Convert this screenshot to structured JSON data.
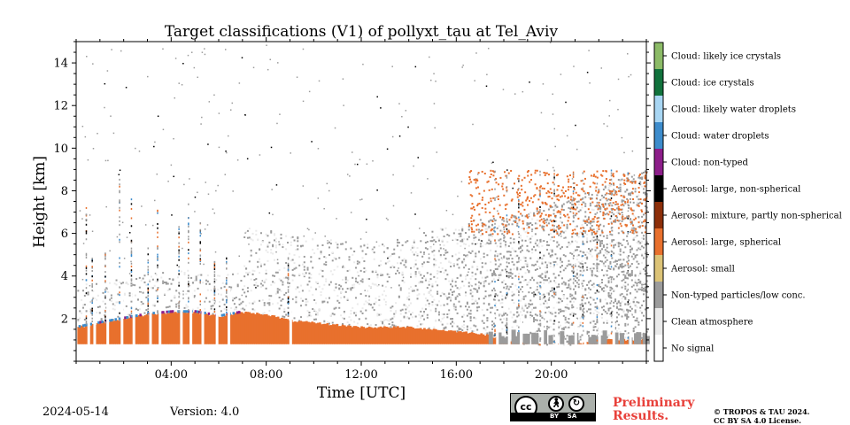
{
  "chart_data": {
    "type": "heatmap",
    "title": "Target classifications (V1) of pollyxt_tau at Tel_Aviv",
    "xlabel": "Time [UTC]",
    "ylabel": "Height [km]",
    "xlim": [
      0,
      24
    ],
    "ylim": [
      0,
      15
    ],
    "x_ticks": [
      4,
      8,
      12,
      16,
      20
    ],
    "x_tick_labels": [
      "04:00",
      "08:00",
      "12:00",
      "16:00",
      "20:00"
    ],
    "y_ticks": [
      2,
      4,
      6,
      8,
      10,
      12,
      14
    ],
    "y_tick_labels": [
      "2",
      "4",
      "6",
      "8",
      "10",
      "12",
      "14"
    ],
    "classes": [
      {
        "label": "No signal",
        "color": "#ffffff"
      },
      {
        "label": "Clean atmosphere",
        "color": "#eaeaea"
      },
      {
        "label": "Non-typed particles/low conc.",
        "color": "#9b9b9b"
      },
      {
        "label": "Aerosol: small",
        "color": "#dcc377"
      },
      {
        "label": "Aerosol: large, spherical",
        "color": "#e8702d"
      },
      {
        "label": "Aerosol: mixture, partly non-spherical",
        "color": "#8c2e09"
      },
      {
        "label": "Aerosol: large, non-spherical",
        "color": "#000000"
      },
      {
        "label": "Cloud: non-typed",
        "color": "#8c1d89"
      },
      {
        "label": "Cloud: water droplets",
        "color": "#3d8ccc"
      },
      {
        "label": "Cloud: likely water droplets",
        "color": "#a8d6f3"
      },
      {
        "label": "Cloud: ice crystals",
        "color": "#11723c"
      },
      {
        "label": "Cloud: likely ice crystals",
        "color": "#8cbb67"
      }
    ],
    "aerosol_layer_top_km": [
      {
        "time": 0.1,
        "height": 1.6
      },
      {
        "time": 1.0,
        "height": 1.8
      },
      {
        "time": 2.0,
        "height": 2.0
      },
      {
        "time": 3.0,
        "height": 2.2
      },
      {
        "time": 4.0,
        "height": 2.3
      },
      {
        "time": 5.0,
        "height": 2.3
      },
      {
        "time": 6.0,
        "height": 2.1
      },
      {
        "time": 7.0,
        "height": 2.3
      },
      {
        "time": 8.0,
        "height": 2.2
      },
      {
        "time": 9.0,
        "height": 1.9
      },
      {
        "time": 10.0,
        "height": 1.8
      },
      {
        "time": 11.0,
        "height": 1.7
      },
      {
        "time": 12.0,
        "height": 1.6
      },
      {
        "time": 13.0,
        "height": 1.6
      },
      {
        "time": 14.0,
        "height": 1.6
      },
      {
        "time": 15.0,
        "height": 1.5
      },
      {
        "time": 16.0,
        "height": 1.4
      },
      {
        "time": 17.0,
        "height": 1.3
      },
      {
        "time": 18.0,
        "height": 1.0
      },
      {
        "time": 19.0,
        "height": 0.8
      },
      {
        "time": 20.0,
        "height": 0.8
      },
      {
        "time": 21.0,
        "height": 0.8
      },
      {
        "time": 22.0,
        "height": 1.0
      },
      {
        "time": 23.9,
        "height": 1.0
      }
    ],
    "aerosol_layer_base_km": 0.8,
    "upper_aerosol_layer": {
      "time_start": 16.5,
      "time_end": 24.0,
      "height_bottom": 6.0,
      "height_top": 9.0
    },
    "data_gaps_utc": [
      0.4,
      0.65,
      1.2,
      1.8,
      2.3,
      3.0,
      3.4,
      4.3,
      4.7,
      5.2,
      5.8,
      6.3,
      8.9,
      17.6,
      18.1,
      18.6,
      19.5,
      20.1,
      20.9,
      21.3,
      21.9,
      22.5,
      23.2
    ]
  },
  "footer": {
    "date": "2024-05-14",
    "version": "Version: 4.0",
    "preliminary": "Preliminary",
    "results": "Results.",
    "copyright_line1": "© TROPOS & TAU 2024.",
    "copyright_line2": "CC BY SA 4.0 License.",
    "cc_label": "cc",
    "by_label": "BY",
    "sa_label": "SA"
  }
}
